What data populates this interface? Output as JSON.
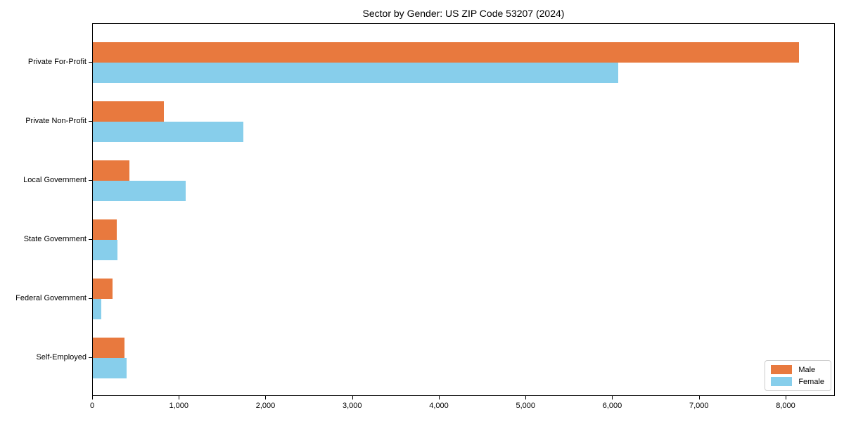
{
  "chart_data": {
    "type": "bar",
    "orientation": "horizontal",
    "title": "Sector by Gender: US ZIP Code 53207 (2024)",
    "categories": [
      "Private For-Profit",
      "Private Non-Profit",
      "Local Government",
      "State Government",
      "Federal Government",
      "Self-Employed"
    ],
    "series": [
      {
        "name": "Male",
        "color": "#e8793e",
        "values": [
          8150,
          820,
          420,
          275,
          230,
          365
        ]
      },
      {
        "name": "Female",
        "color": "#87ceeb",
        "values": [
          6060,
          1740,
          1070,
          285,
          100,
          390
        ]
      }
    ],
    "xlabel": "",
    "ylabel": "",
    "xlim": [
      0,
      8568
    ],
    "x_ticks": [
      0,
      1000,
      2000,
      3000,
      4000,
      5000,
      6000,
      7000,
      8000
    ],
    "x_tick_labels": [
      "0",
      "1,000",
      "2,000",
      "3,000",
      "4,000",
      "5,000",
      "6,000",
      "7,000",
      "8,000"
    ],
    "grid": false,
    "legend": {
      "position": "lower right",
      "entries": [
        "Male",
        "Female"
      ]
    },
    "colors": {
      "male": "#e8793e",
      "female": "#87ceeb",
      "spine": "#000000",
      "legend_border": "#cccccc",
      "background": "#ffffff"
    }
  }
}
